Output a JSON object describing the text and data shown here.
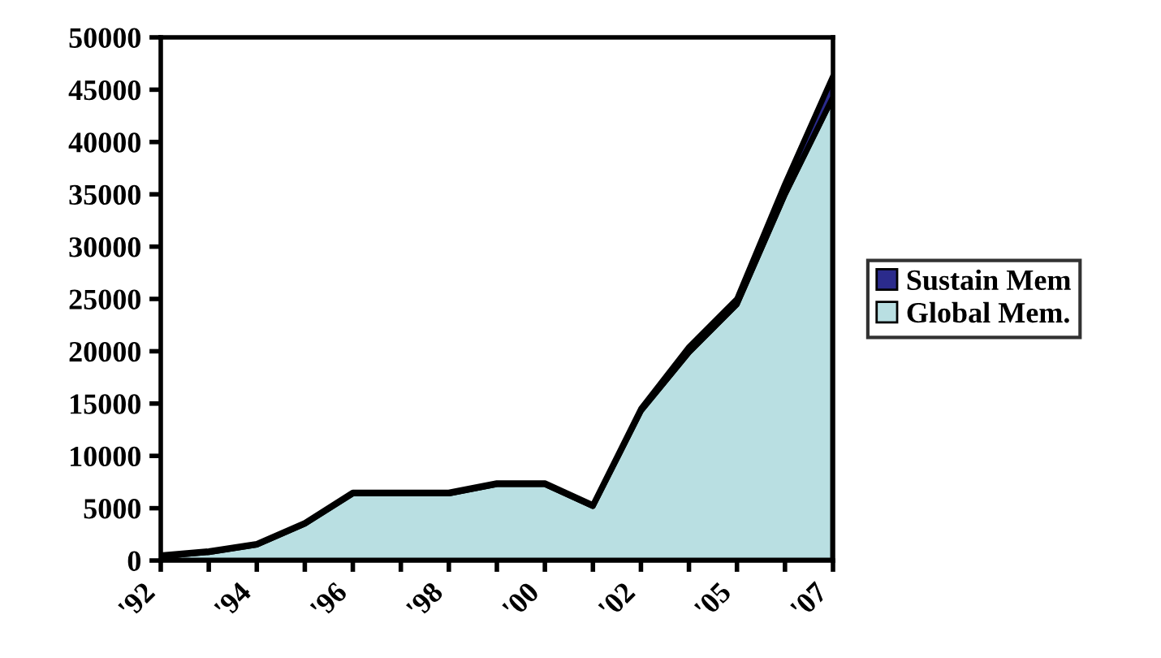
{
  "chart_data": {
    "type": "area",
    "stacked": true,
    "categories": [
      "'92",
      null,
      "'94",
      null,
      "'96",
      null,
      "'98",
      null,
      "'00",
      null,
      "'02",
      null,
      "'05",
      null,
      "'07"
    ],
    "series": [
      {
        "name": "Global Mem.",
        "color": "#b9dfe2",
        "values": [
          400,
          800,
          1500,
          3500,
          6400,
          6400,
          6400,
          7300,
          7300,
          5200,
          14300,
          19900,
          24500,
          35000,
          44300
        ]
      },
      {
        "name": "Sustain Mem",
        "color": "#2b2b8c",
        "values": [
          100,
          100,
          100,
          100,
          100,
          100,
          100,
          100,
          100,
          100,
          200,
          500,
          500,
          1000,
          2000
        ]
      }
    ],
    "ylim": [
      0,
      50000
    ],
    "yticks": [
      0,
      5000,
      10000,
      15000,
      20000,
      25000,
      30000,
      35000,
      40000,
      45000,
      50000
    ],
    "grid": false,
    "legend": "right"
  }
}
